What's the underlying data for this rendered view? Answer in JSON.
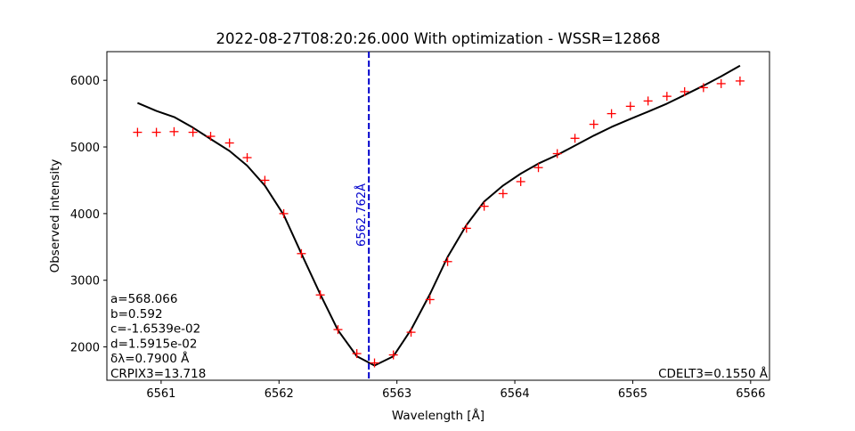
{
  "chart_data": {
    "type": "line",
    "title": "2022-08-27T08:20:26.000 With optimization - WSSR=12868",
    "xlabel": "Wavelength [Å]",
    "ylabel": "Observed intensity",
    "xlim": [
      6560.54,
      6566.16
    ],
    "ylim": [
      1500,
      6430
    ],
    "x_ticks": [
      "6561",
      "6562",
      "6563",
      "6564",
      "6565",
      "6566"
    ],
    "y_ticks": [
      "2000",
      "3000",
      "4000",
      "5000",
      "6000"
    ],
    "grid": false,
    "series": [
      {
        "kind": "line",
        "color": "#000000",
        "x": [
          6560.8,
          6560.96,
          6561.11,
          6561.27,
          6561.42,
          6561.58,
          6561.73,
          6561.88,
          6562.04,
          6562.19,
          6562.35,
          6562.5,
          6562.66,
          6562.81,
          6562.97,
          6563.12,
          6563.28,
          6563.43,
          6563.59,
          6563.74,
          6563.9,
          6564.05,
          6564.2,
          6564.36,
          6564.51,
          6564.67,
          6564.82,
          6564.98,
          6565.13,
          6565.29,
          6565.44,
          6565.6,
          6565.75,
          6565.91
        ],
        "y": [
          5660,
          5540,
          5450,
          5290,
          5120,
          4940,
          4720,
          4420,
          3980,
          3400,
          2790,
          2250,
          1860,
          1720,
          1860,
          2260,
          2790,
          3350,
          3830,
          4180,
          4420,
          4600,
          4750,
          4880,
          5020,
          5170,
          5300,
          5420,
          5530,
          5650,
          5780,
          5920,
          6060,
          6220
        ]
      },
      {
        "kind": "scatter",
        "marker": "+",
        "color": "#ff0000",
        "x": [
          6560.8,
          6560.96,
          6561.11,
          6561.27,
          6561.42,
          6561.58,
          6561.73,
          6561.88,
          6562.04,
          6562.19,
          6562.35,
          6562.5,
          6562.66,
          6562.81,
          6562.97,
          6563.12,
          6563.28,
          6563.43,
          6563.59,
          6563.74,
          6563.9,
          6564.05,
          6564.2,
          6564.36,
          6564.51,
          6564.67,
          6564.82,
          6564.98,
          6565.13,
          6565.29,
          6565.44,
          6565.6,
          6565.75,
          6565.91
        ],
        "y": [
          5220,
          5220,
          5230,
          5220,
          5160,
          5060,
          4840,
          4500,
          4000,
          3400,
          2780,
          2260,
          1900,
          1760,
          1880,
          2220,
          2710,
          3280,
          3780,
          4110,
          4300,
          4480,
          4690,
          4900,
          5130,
          5340,
          5500,
          5610,
          5690,
          5760,
          5830,
          5890,
          5950,
          5990
        ]
      }
    ],
    "vline": {
      "x": 6562.762,
      "label": "6562.762Å",
      "color": "#0000cc",
      "style": "dashed"
    },
    "annotations_left": [
      "a=568.066",
      "b=0.592",
      "c=-1.6539e-02",
      "d=1.5915e-02",
      "δλ=0.7900 Å",
      "CRPIX3=13.718"
    ],
    "annotation_right": "CDELT3=0.1550 Å"
  }
}
